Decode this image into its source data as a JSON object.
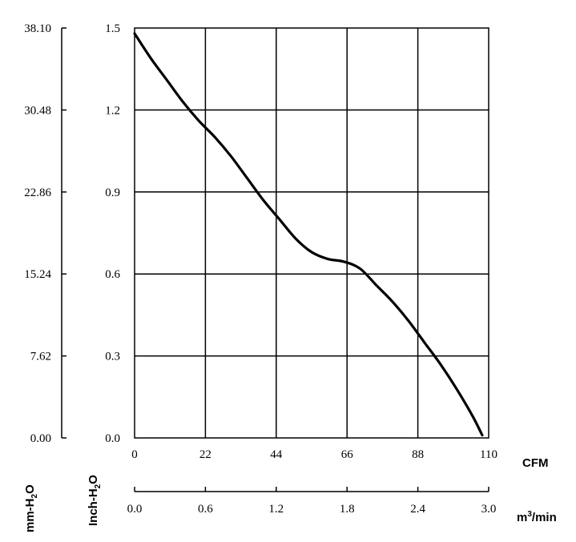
{
  "chart_data": {
    "type": "line",
    "x_primary": {
      "unit": "CFM",
      "ticks": [
        "0",
        "22",
        "44",
        "66",
        "88",
        "110"
      ],
      "range": [
        0,
        110
      ]
    },
    "x_secondary": {
      "unit": "m³/min",
      "unit_base": "m",
      "unit_sup": "3",
      "unit_tail": "/min",
      "ticks": [
        "0.0",
        "0.6",
        "1.2",
        "1.8",
        "2.4",
        "3.0"
      ],
      "range": [
        0,
        3.0
      ]
    },
    "y_primary": {
      "label_base": "Inch-H",
      "label_sub": "2",
      "label_tail": "O",
      "ticks": [
        "0.0",
        "0.3",
        "0.6",
        "0.9",
        "1.2",
        "1.5"
      ],
      "range": [
        0,
        1.5
      ]
    },
    "y_secondary": {
      "label_base": "mm-H",
      "label_sub": "2",
      "label_tail": "O",
      "ticks": [
        "0.00",
        "7.62",
        "15.24",
        "22.86",
        "30.48",
        "38.10"
      ],
      "range": [
        0,
        38.1
      ]
    },
    "grid": true,
    "series": [
      {
        "color": "#000000",
        "x": [
          0,
          5,
          10,
          15,
          20,
          25,
          30,
          35,
          40,
          45,
          50,
          55,
          60,
          65,
          70,
          75,
          80,
          85,
          90,
          95,
          100,
          105,
          108
        ],
        "y": [
          1.48,
          1.39,
          1.31,
          1.23,
          1.16,
          1.1,
          1.03,
          0.95,
          0.87,
          0.8,
          0.73,
          0.68,
          0.655,
          0.645,
          0.62,
          0.56,
          0.5,
          0.43,
          0.35,
          0.27,
          0.18,
          0.08,
          0.01
        ]
      }
    ]
  }
}
